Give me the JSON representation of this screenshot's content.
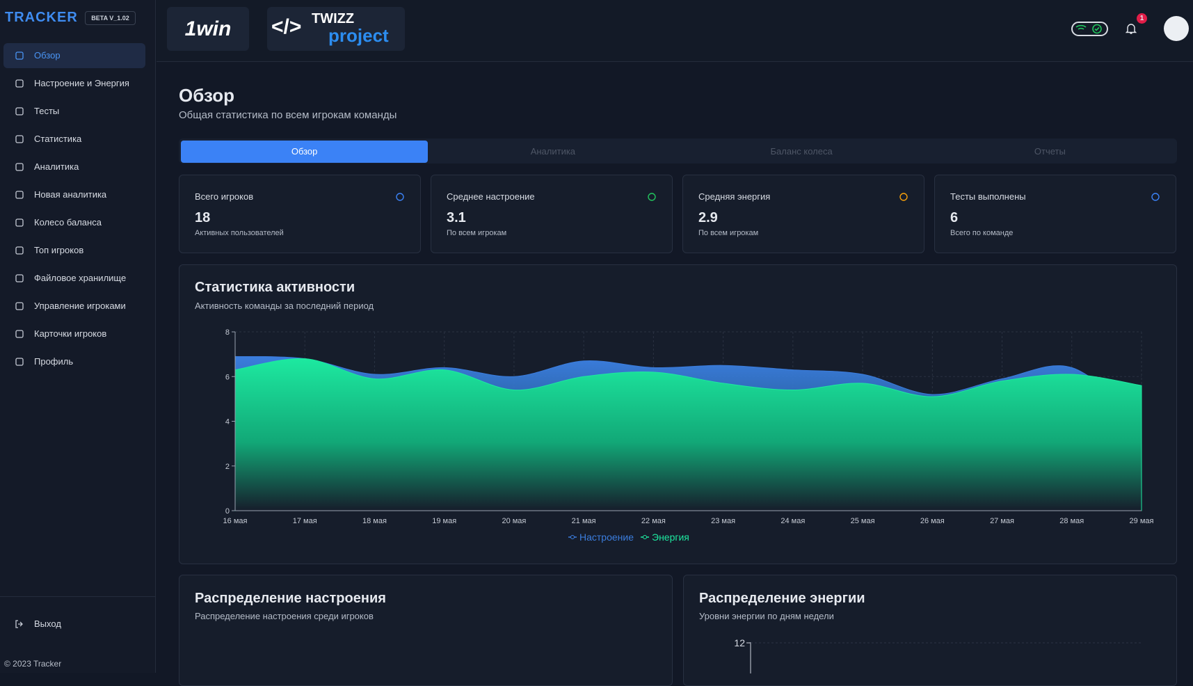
{
  "sidebar": {
    "brand": "TRACKER",
    "version": "BETA V_1.02",
    "active_item": 0,
    "menu": [
      "Обзор",
      "Настроение и Энергия",
      "Тесты",
      "Статистика",
      "Аналитика",
      "Новая аналитика",
      "Колесо баланса",
      "Топ игроков",
      "Файловое хранилище",
      "Управление игроками",
      "Карточки игроков",
      "Профиль"
    ],
    "logout": "Выход",
    "footer": "© 2023 Tracker"
  },
  "header": {
    "logo_1": "1win",
    "logo_2_top": "TWIZZ",
    "logo_2_bottom": "project",
    "notifications": "1"
  },
  "page": {
    "title": "Обзор",
    "subtitle": "Общая статистика по всем игрокам команды"
  },
  "tabs": {
    "active": 0,
    "items": [
      "Обзор",
      "Аналитика",
      "Баланс колеса",
      "Отчеты"
    ]
  },
  "stats": [
    {
      "label": "Всего игроков",
      "value": "18",
      "note": "Активных пользователей"
    },
    {
      "label": "Среднее настроение",
      "value": "3.1",
      "note": "По всем игрокам"
    },
    {
      "label": "Средняя энергия",
      "value": "2.9",
      "note": "По всем игрокам"
    },
    {
      "label": "Тесты выполнены",
      "value": "6",
      "note": "Всего по команде"
    }
  ],
  "chart_data": {
    "type": "area",
    "title": "Статистика активности",
    "subtitle": "Активность команды за последний период",
    "categories": [
      "16 мая",
      "17 мая",
      "18 мая",
      "19 мая",
      "20 мая",
      "21 мая",
      "22 мая",
      "23 мая",
      "24 мая",
      "25 мая",
      "26 мая",
      "27 мая",
      "28 мая",
      "29 мая"
    ],
    "series": [
      {
        "name": "Настроение",
        "color": "#3b7ddd",
        "values": [
          6.9,
          6.8,
          6.1,
          6.4,
          6.0,
          6.7,
          6.4,
          6.5,
          6.3,
          6.1,
          5.2,
          5.9,
          6.4,
          4.0
        ]
      },
      {
        "name": "Энергия",
        "color": "#1de9a0",
        "values": [
          6.3,
          6.8,
          5.9,
          6.3,
          5.4,
          6.0,
          6.2,
          5.7,
          5.4,
          5.7,
          5.1,
          5.8,
          6.1,
          5.6
        ]
      }
    ],
    "ylim": [
      0,
      8
    ],
    "yticks": [
      0,
      2,
      4,
      6,
      8
    ],
    "grid": true
  },
  "mood_panel": {
    "title": "Распределение настроения",
    "subtitle": "Распределение настроения среди игроков"
  },
  "energy_panel": {
    "title": "Распределение энергии",
    "subtitle": "Уровни энергии по дням недели",
    "yticks": [
      12
    ]
  }
}
